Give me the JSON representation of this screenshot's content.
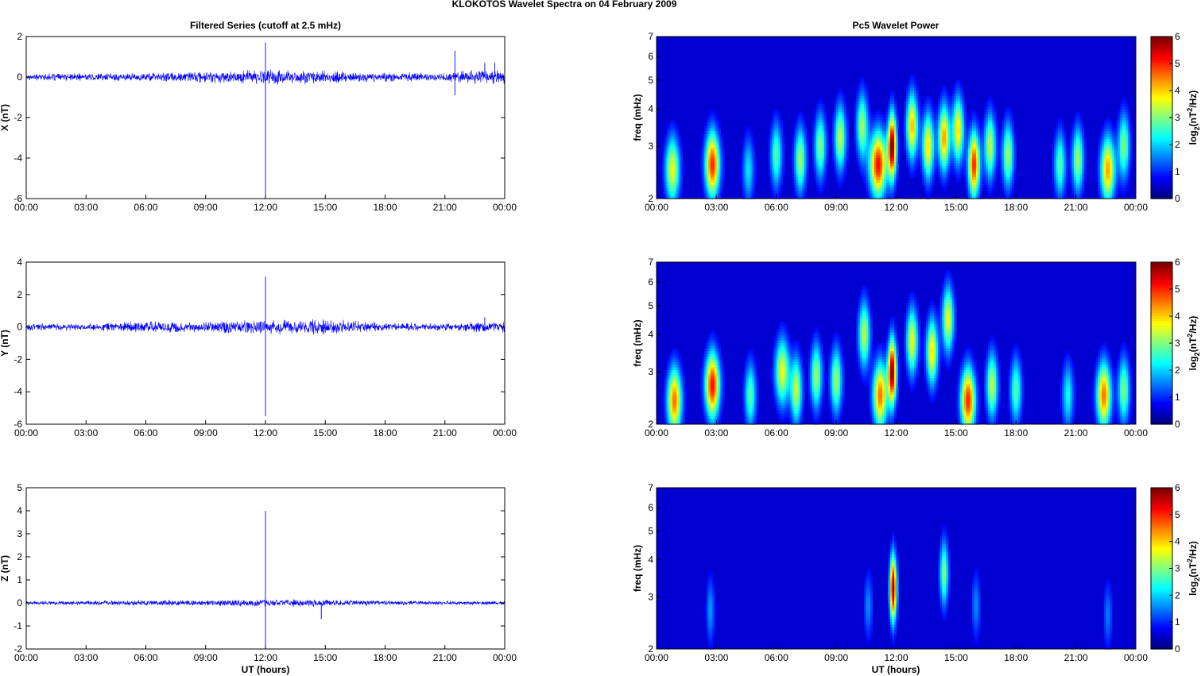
{
  "figure": {
    "title": "KLOKOTOS Wavelet Spectra on 04 February  2009",
    "left_title": "Filtered Series (cutoff at 2.5 mHz)",
    "right_title": "Pc5 Wavelet Power",
    "xlabel": "UT (hours)"
  },
  "time_ticks": [
    "00:00",
    "03:00",
    "06:00",
    "09:00",
    "12:00",
    "15:00",
    "18:00",
    "21:00",
    "00:00"
  ],
  "colorbar": {
    "ticks": [
      "0",
      "1",
      "2",
      "3",
      "4",
      "5",
      "6"
    ],
    "label_main": "log",
    "label_sub": "2",
    "label_mid": "(nT",
    "label_sup": "2",
    "label_end": "/Hz)",
    "colormap": "jet",
    "range": [
      0,
      6
    ]
  },
  "chart_data": [
    {
      "type": "line",
      "panel": "X",
      "ylabel": "X (nT)",
      "x_unit": "UT hours",
      "xlim": [
        0,
        24
      ],
      "ylim": [
        -6,
        2
      ],
      "yticks": [
        "2",
        "0",
        "-2",
        "-4",
        "-6"
      ],
      "color": "#0000ff",
      "noise_amplitude": [
        [
          0,
          0.15
        ],
        [
          3,
          0.18
        ],
        [
          6,
          0.2
        ],
        [
          9,
          0.28
        ],
        [
          11,
          0.32
        ],
        [
          12,
          0.35
        ],
        [
          15,
          0.3
        ],
        [
          18,
          0.2
        ],
        [
          21,
          0.2
        ],
        [
          22,
          0.3
        ],
        [
          24,
          0.35
        ]
      ],
      "spikes": [
        {
          "x": 12.0,
          "y": 1.7
        },
        {
          "x": 12.0,
          "y": -5.9
        },
        {
          "x": 21.5,
          "y": 1.3
        },
        {
          "x": 21.5,
          "y": -0.9
        },
        {
          "x": 23.0,
          "y": 0.7
        },
        {
          "x": 23.5,
          "y": 0.7
        }
      ]
    },
    {
      "type": "heatmap",
      "panel": "X",
      "ylabel": "freq (mHz)",
      "yscale": "log",
      "ylim": [
        2,
        7
      ],
      "yticks": [
        "7",
        "6",
        "5",
        "4",
        "3",
        "2"
      ],
      "blobs": [
        {
          "t": 0.8,
          "f": 2.5,
          "p": 3.5,
          "w": 0.25
        },
        {
          "t": 2.8,
          "f": 2.6,
          "p": 5.0,
          "w": 0.25
        },
        {
          "t": 4.6,
          "f": 2.5,
          "p": 1.8,
          "w": 0.2
        },
        {
          "t": 6.0,
          "f": 2.8,
          "p": 2.5,
          "w": 0.2
        },
        {
          "t": 7.2,
          "f": 2.7,
          "p": 3.0,
          "w": 0.2
        },
        {
          "t": 8.2,
          "f": 3.0,
          "p": 2.8,
          "w": 0.2
        },
        {
          "t": 9.2,
          "f": 3.2,
          "p": 3.2,
          "w": 0.2
        },
        {
          "t": 10.3,
          "f": 3.5,
          "p": 3.0,
          "w": 0.2
        },
        {
          "t": 11.1,
          "f": 2.6,
          "p": 5.2,
          "w": 0.3
        },
        {
          "t": 11.8,
          "f": 3.0,
          "p": 6.0,
          "w": 0.15
        },
        {
          "t": 12.8,
          "f": 3.5,
          "p": 4.0,
          "w": 0.2
        },
        {
          "t": 13.6,
          "f": 3.0,
          "p": 3.8,
          "w": 0.2
        },
        {
          "t": 14.4,
          "f": 3.2,
          "p": 4.2,
          "w": 0.2
        },
        {
          "t": 15.1,
          "f": 3.4,
          "p": 3.8,
          "w": 0.2
        },
        {
          "t": 15.9,
          "f": 2.6,
          "p": 5.0,
          "w": 0.2
        },
        {
          "t": 16.7,
          "f": 3.0,
          "p": 3.2,
          "w": 0.2
        },
        {
          "t": 17.6,
          "f": 2.8,
          "p": 3.0,
          "w": 0.2
        },
        {
          "t": 20.2,
          "f": 2.6,
          "p": 2.5,
          "w": 0.2
        },
        {
          "t": 21.1,
          "f": 2.7,
          "p": 3.0,
          "w": 0.2
        },
        {
          "t": 22.6,
          "f": 2.5,
          "p": 4.2,
          "w": 0.25
        },
        {
          "t": 23.4,
          "f": 3.0,
          "p": 2.8,
          "w": 0.2
        }
      ]
    },
    {
      "type": "line",
      "panel": "Y",
      "ylabel": "Y (nT)",
      "x_unit": "UT hours",
      "xlim": [
        0,
        24
      ],
      "ylim": [
        -6,
        4
      ],
      "yticks": [
        "4",
        "2",
        "0",
        "-2",
        "-4",
        "-6"
      ],
      "color": "#0000ff",
      "noise_amplitude": [
        [
          0,
          0.2
        ],
        [
          3,
          0.2
        ],
        [
          6,
          0.35
        ],
        [
          9,
          0.3
        ],
        [
          11,
          0.4
        ],
        [
          12,
          0.4
        ],
        [
          15,
          0.45
        ],
        [
          18,
          0.25
        ],
        [
          21,
          0.2
        ],
        [
          23,
          0.35
        ],
        [
          24,
          0.3
        ]
      ],
      "spikes": [
        {
          "x": 12.0,
          "y": 3.1
        },
        {
          "x": 12.0,
          "y": -5.5
        },
        {
          "x": 23.0,
          "y": 0.6
        }
      ]
    },
    {
      "type": "heatmap",
      "panel": "Y",
      "ylabel": "freq (mHz)",
      "yscale": "log",
      "ylim": [
        2,
        7
      ],
      "yticks": [
        "7",
        "6",
        "5",
        "4",
        "3",
        "2"
      ],
      "blobs": [
        {
          "t": 0.9,
          "f": 2.4,
          "p": 4.5,
          "w": 0.25
        },
        {
          "t": 2.8,
          "f": 2.7,
          "p": 5.2,
          "w": 0.25
        },
        {
          "t": 4.7,
          "f": 2.5,
          "p": 2.5,
          "w": 0.2
        },
        {
          "t": 6.3,
          "f": 3.0,
          "p": 3.5,
          "w": 0.25
        },
        {
          "t": 7.0,
          "f": 2.6,
          "p": 3.2,
          "w": 0.2
        },
        {
          "t": 8.0,
          "f": 2.9,
          "p": 3.0,
          "w": 0.2
        },
        {
          "t": 9.0,
          "f": 2.8,
          "p": 3.0,
          "w": 0.2
        },
        {
          "t": 10.4,
          "f": 4.0,
          "p": 3.2,
          "w": 0.2
        },
        {
          "t": 11.2,
          "f": 2.5,
          "p": 4.5,
          "w": 0.25
        },
        {
          "t": 11.8,
          "f": 3.0,
          "p": 6.0,
          "w": 0.15
        },
        {
          "t": 12.8,
          "f": 3.8,
          "p": 3.5,
          "w": 0.2
        },
        {
          "t": 13.8,
          "f": 3.5,
          "p": 3.8,
          "w": 0.2
        },
        {
          "t": 14.6,
          "f": 4.5,
          "p": 3.5,
          "w": 0.2
        },
        {
          "t": 15.6,
          "f": 2.4,
          "p": 5.0,
          "w": 0.25
        },
        {
          "t": 16.8,
          "f": 2.7,
          "p": 3.2,
          "w": 0.2
        },
        {
          "t": 18.0,
          "f": 2.6,
          "p": 2.5,
          "w": 0.2
        },
        {
          "t": 22.4,
          "f": 2.5,
          "p": 4.5,
          "w": 0.25
        },
        {
          "t": 23.4,
          "f": 2.6,
          "p": 2.8,
          "w": 0.2
        },
        {
          "t": 20.6,
          "f": 2.5,
          "p": 2.0,
          "w": 0.2
        }
      ]
    },
    {
      "type": "line",
      "panel": "Z",
      "ylabel": "Z (nT)",
      "x_unit": "UT hours",
      "xlim": [
        0,
        24
      ],
      "ylim": [
        -2,
        5
      ],
      "yticks": [
        "5",
        "4",
        "3",
        "2",
        "1",
        "0",
        "-1",
        "-2"
      ],
      "color": "#0000ff",
      "noise_amplitude": [
        [
          0,
          0.08
        ],
        [
          3,
          0.08
        ],
        [
          6,
          0.12
        ],
        [
          9,
          0.12
        ],
        [
          12,
          0.15
        ],
        [
          15,
          0.15
        ],
        [
          18,
          0.1
        ],
        [
          21,
          0.08
        ],
        [
          24,
          0.08
        ]
      ],
      "spikes": [
        {
          "x": 12.0,
          "y": 4.0
        },
        {
          "x": 12.0,
          "y": -1.9
        },
        {
          "x": 14.8,
          "y": -0.7
        }
      ]
    },
    {
      "type": "heatmap",
      "panel": "Z",
      "ylabel": "freq (mHz)",
      "yscale": "log",
      "ylim": [
        2,
        7
      ],
      "yticks": [
        "7",
        "6",
        "5",
        "4",
        "3",
        "2"
      ],
      "blobs": [
        {
          "t": 11.85,
          "f": 3.2,
          "p": 6.0,
          "w": 0.12
        },
        {
          "t": 14.4,
          "f": 3.6,
          "p": 2.8,
          "w": 0.15
        },
        {
          "t": 2.7,
          "f": 2.7,
          "p": 1.3,
          "w": 0.15
        },
        {
          "t": 10.6,
          "f": 2.8,
          "p": 1.2,
          "w": 0.15
        },
        {
          "t": 16.0,
          "f": 2.8,
          "p": 1.2,
          "w": 0.15
        },
        {
          "t": 22.6,
          "f": 2.6,
          "p": 1.1,
          "w": 0.15
        }
      ]
    }
  ]
}
